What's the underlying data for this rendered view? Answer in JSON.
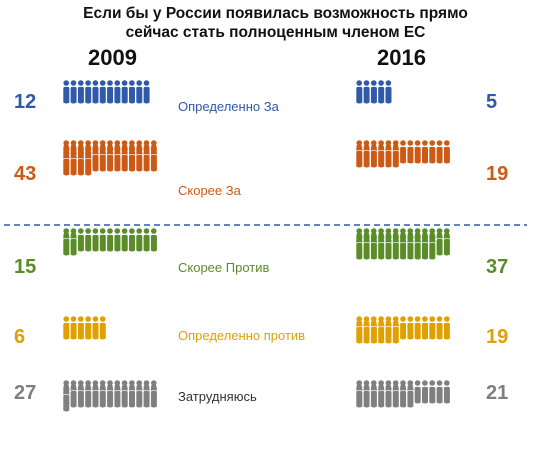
{
  "title_lines": [
    "Если бы у России появилась возможность прямо",
    "сейчас стать полноценным членом ЕС"
  ],
  "chart_data": {
    "type": "pictogram",
    "title": "Если бы у России появилась возможность прямо сейчас стать полноценным членом ЕС",
    "years": [
      "2009",
      "2016"
    ],
    "categories": [
      {
        "label": "Определенно За",
        "color": "#2E5AA8",
        "values": [
          12,
          5
        ]
      },
      {
        "label": "Скорее За",
        "color": "#CC5A14",
        "values": [
          43,
          19
        ]
      },
      {
        "label": "Скорее Против",
        "color": "#5A8C28",
        "values": [
          15,
          37
        ]
      },
      {
        "label": "Определенно против",
        "color": "#E0A000",
        "values": [
          6,
          19
        ]
      },
      {
        "label": "Затрудняюсь",
        "color": "#7F7F7F",
        "values": [
          27,
          21
        ]
      }
    ]
  }
}
